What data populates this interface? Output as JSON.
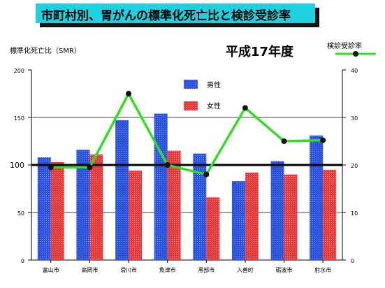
{
  "title": "市町村別、胃がんの標準化死亡比と検診受診率",
  "year_label": "平成17年度",
  "left_axis_label": "標準化死亡比（SMR）",
  "right_legend_label": "検診受診率",
  "colors": {
    "male": "#2a52e0",
    "female": "#e83a3a",
    "screening": "#33dd22",
    "banner": "#1fd0e0"
  },
  "chart_data": {
    "type": "bar",
    "categories": [
      "富山市",
      "高岡市",
      "滑川市",
      "魚津市",
      "黒部市",
      "入善町",
      "砺波市",
      "射水市"
    ],
    "series": [
      {
        "name": "男性",
        "type": "bar",
        "axis": "left",
        "values": [
          108,
          116,
          147,
          154,
          112,
          83,
          104,
          131
        ]
      },
      {
        "name": "女性",
        "type": "bar",
        "axis": "left",
        "values": [
          103,
          111,
          94,
          115,
          66,
          92,
          90,
          95
        ]
      },
      {
        "name": "検診受診率",
        "type": "line",
        "axis": "right",
        "values": [
          19.5,
          19.5,
          35,
          20,
          18,
          32,
          25,
          25.2
        ]
      }
    ],
    "reference_line": 100,
    "y_left": {
      "label": "標準化死亡比（SMR）",
      "range": [
        0,
        200
      ],
      "ticks": [
        0,
        50,
        100,
        150,
        200
      ]
    },
    "y_right": {
      "range": [
        0,
        40
      ],
      "ticks": [
        0,
        10,
        20,
        30,
        40
      ]
    },
    "grid": "horizontal at 50, 150",
    "legend": "top-center"
  }
}
